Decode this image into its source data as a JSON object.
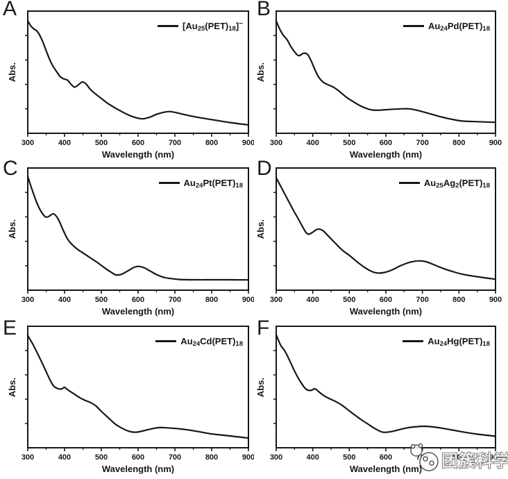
{
  "figure": {
    "background": "#ffffff",
    "line_color": "#161616",
    "watermark": {
      "text": "团簇科学",
      "icon": "cluster-mascot-icon"
    }
  },
  "chart_data": [
    {
      "type": "line",
      "panel": "A",
      "legend_plain": "[Au25(PET)18]−",
      "legend_segments": [
        {
          "t": "[Au"
        },
        {
          "t": "25",
          "s": "sub"
        },
        {
          "t": "(PET)"
        },
        {
          "t": "18",
          "s": "sub"
        },
        {
          "t": "]"
        },
        {
          "t": "−",
          "s": "sup"
        }
      ],
      "xlabel": "Wavelength (nm)",
      "ylabel": "Abs.",
      "xlim": [
        300,
        900
      ],
      "xticks": [
        300,
        400,
        500,
        600,
        700,
        800,
        900
      ],
      "xticks_minor": [
        350,
        450,
        550,
        650,
        750,
        850
      ],
      "ylim": [
        0,
        1
      ],
      "grid": false,
      "legend_position": "top-right",
      "series": [
        {
          "name": "[Au25(PET)18]−",
          "x": [
            300,
            308,
            316,
            324,
            332,
            342,
            352,
            364,
            376,
            388,
            398,
            408,
            418,
            427,
            437,
            448,
            458,
            470,
            485,
            500,
            520,
            545,
            570,
            595,
            612,
            630,
            650,
            670,
            685,
            705,
            730,
            760,
            800,
            850,
            900
          ],
          "y": [
            0.92,
            0.88,
            0.855,
            0.84,
            0.805,
            0.74,
            0.66,
            0.575,
            0.515,
            0.465,
            0.445,
            0.435,
            0.4,
            0.378,
            0.395,
            0.42,
            0.405,
            0.36,
            0.32,
            0.285,
            0.24,
            0.195,
            0.155,
            0.127,
            0.118,
            0.13,
            0.155,
            0.172,
            0.178,
            0.168,
            0.15,
            0.132,
            0.112,
            0.088,
            0.068
          ]
        }
      ]
    },
    {
      "type": "line",
      "panel": "B",
      "legend_plain": "Au24Pd(PET)18",
      "legend_segments": [
        {
          "t": "Au"
        },
        {
          "t": "24",
          "s": "sub"
        },
        {
          "t": "Pd(PET)"
        },
        {
          "t": "18",
          "s": "sub"
        }
      ],
      "xlabel": "Wavelength (nm)",
      "ylabel": "Abs.",
      "xlim": [
        300,
        900
      ],
      "xticks": [
        300,
        400,
        500,
        600,
        700,
        800,
        900
      ],
      "xticks_minor": [
        350,
        450,
        550,
        650,
        750,
        850
      ],
      "ylim": [
        0,
        1
      ],
      "grid": false,
      "legend_position": "top-right",
      "series": [
        {
          "name": "Au24Pd(PET)18",
          "x": [
            300,
            310,
            320,
            330,
            340,
            352,
            362,
            375,
            386,
            396,
            406,
            416,
            428,
            440,
            455,
            470,
            490,
            510,
            530,
            550,
            565,
            585,
            610,
            640,
            665,
            690,
            720,
            750,
            780,
            810,
            850,
            900
          ],
          "y": [
            0.92,
            0.85,
            0.8,
            0.765,
            0.71,
            0.66,
            0.635,
            0.655,
            0.645,
            0.59,
            0.52,
            0.46,
            0.42,
            0.4,
            0.38,
            0.35,
            0.3,
            0.26,
            0.225,
            0.2,
            0.19,
            0.19,
            0.195,
            0.2,
            0.2,
            0.185,
            0.16,
            0.135,
            0.115,
            0.1,
            0.095,
            0.09
          ]
        }
      ]
    },
    {
      "type": "line",
      "panel": "C",
      "legend_plain": "Au24Pt(PET)18",
      "legend_segments": [
        {
          "t": "Au"
        },
        {
          "t": "24",
          "s": "sub"
        },
        {
          "t": "Pt(PET)"
        },
        {
          "t": "18",
          "s": "sub"
        }
      ],
      "xlabel": "Wavelength (nm)",
      "ylabel": "Abs.",
      "xlim": [
        300,
        900
      ],
      "xticks": [
        300,
        400,
        500,
        600,
        700,
        800,
        900
      ],
      "xticks_minor": [
        350,
        450,
        550,
        650,
        750,
        850
      ],
      "ylim": [
        0,
        1
      ],
      "grid": false,
      "legend_position": "top-right",
      "series": [
        {
          "name": "Au24Pt(PET)18",
          "x": [
            300,
            312,
            324,
            336,
            348,
            358,
            370,
            382,
            395,
            408,
            420,
            435,
            450,
            470,
            490,
            510,
            525,
            540,
            555,
            572,
            588,
            600,
            615,
            632,
            650,
            670,
            690,
            710,
            730,
            760,
            800,
            850,
            900
          ],
          "y": [
            0.93,
            0.82,
            0.72,
            0.645,
            0.6,
            0.605,
            0.625,
            0.585,
            0.5,
            0.42,
            0.375,
            0.335,
            0.305,
            0.265,
            0.225,
            0.18,
            0.15,
            0.125,
            0.13,
            0.158,
            0.185,
            0.195,
            0.185,
            0.158,
            0.128,
            0.105,
            0.095,
            0.088,
            0.086,
            0.085,
            0.085,
            0.085,
            0.084
          ]
        }
      ]
    },
    {
      "type": "line",
      "panel": "D",
      "legend_plain": "Au25Ag2(PET)18",
      "legend_segments": [
        {
          "t": "Au"
        },
        {
          "t": "25",
          "s": "sub"
        },
        {
          "t": "Ag"
        },
        {
          "t": "2",
          "s": "sub"
        },
        {
          "t": "(PET)"
        },
        {
          "t": "18",
          "s": "sub"
        }
      ],
      "xlabel": "Wavelength (nm)",
      "ylabel": "Abs.",
      "xlim": [
        300,
        900
      ],
      "xticks": [
        300,
        400,
        500,
        600,
        700,
        800,
        900
      ],
      "xticks_minor": [
        350,
        450,
        550,
        650,
        750,
        850
      ],
      "ylim": [
        0,
        1
      ],
      "grid": false,
      "legend_position": "top-right",
      "series": [
        {
          "name": "Au25Ag2(PET)18",
          "x": [
            300,
            315,
            330,
            345,
            360,
            372,
            382,
            390,
            400,
            410,
            418,
            428,
            442,
            460,
            480,
            500,
            520,
            540,
            560,
            580,
            600,
            620,
            640,
            665,
            690,
            710,
            730,
            755,
            780,
            810,
            850,
            900
          ],
          "y": [
            0.92,
            0.835,
            0.75,
            0.665,
            0.585,
            0.52,
            0.47,
            0.458,
            0.475,
            0.495,
            0.5,
            0.487,
            0.445,
            0.39,
            0.33,
            0.285,
            0.235,
            0.19,
            0.155,
            0.14,
            0.148,
            0.17,
            0.2,
            0.228,
            0.24,
            0.233,
            0.21,
            0.18,
            0.155,
            0.13,
            0.11,
            0.09
          ]
        }
      ]
    },
    {
      "type": "line",
      "panel": "E",
      "legend_plain": "Au24Cd(PET)18",
      "legend_segments": [
        {
          "t": "Au"
        },
        {
          "t": "24",
          "s": "sub"
        },
        {
          "t": "Cd(PET)"
        },
        {
          "t": "18",
          "s": "sub"
        }
      ],
      "xlabel": "Wavelength (nm)",
      "ylabel": "Abs.",
      "xlim": [
        300,
        900
      ],
      "xticks": [
        300,
        400,
        500,
        600,
        700,
        800,
        900
      ],
      "xticks_minor": [
        350,
        450,
        550,
        650,
        750,
        850
      ],
      "ylim": [
        0,
        1
      ],
      "grid": false,
      "legend_position": "top-right",
      "series": [
        {
          "name": "Au24Cd(PET)18",
          "x": [
            300,
            315,
            330,
            345,
            358,
            370,
            382,
            392,
            400,
            410,
            424,
            440,
            456,
            470,
            485,
            500,
            518,
            538,
            558,
            578,
            595,
            615,
            635,
            660,
            690,
            715,
            740,
            770,
            800,
            850,
            900
          ],
          "y": [
            0.925,
            0.845,
            0.755,
            0.66,
            0.575,
            0.51,
            0.487,
            0.484,
            0.497,
            0.474,
            0.447,
            0.415,
            0.39,
            0.373,
            0.345,
            0.3,
            0.25,
            0.195,
            0.158,
            0.133,
            0.128,
            0.14,
            0.155,
            0.166,
            0.161,
            0.155,
            0.145,
            0.13,
            0.114,
            0.097,
            0.08
          ]
        }
      ]
    },
    {
      "type": "line",
      "panel": "F",
      "legend_plain": "Au24Hg(PET)18",
      "legend_segments": [
        {
          "t": "Au"
        },
        {
          "t": "24",
          "s": "sub"
        },
        {
          "t": "Hg(PET)"
        },
        {
          "t": "18",
          "s": "sub"
        }
      ],
      "xlabel": "Wavelength (nm)",
      "ylabel": "Abs.",
      "xlim": [
        300,
        900
      ],
      "xticks": [
        300,
        400,
        500,
        600,
        700,
        800,
        900
      ],
      "xticks_minor": [
        350,
        450,
        550,
        650,
        750,
        850
      ],
      "ylim": [
        0,
        1
      ],
      "grid": false,
      "legend_position": "top-right",
      "series": [
        {
          "name": "Au24Hg(PET)18",
          "x": [
            300,
            312,
            324,
            338,
            352,
            366,
            380,
            390,
            398,
            406,
            416,
            430,
            445,
            462,
            480,
            498,
            515,
            532,
            550,
            570,
            592,
            615,
            640,
            662,
            685,
            705,
            728,
            752,
            778,
            805,
            850,
            900
          ],
          "y": [
            0.93,
            0.845,
            0.795,
            0.71,
            0.62,
            0.545,
            0.487,
            0.472,
            0.475,
            0.486,
            0.462,
            0.43,
            0.405,
            0.382,
            0.35,
            0.308,
            0.27,
            0.232,
            0.197,
            0.158,
            0.128,
            0.133,
            0.152,
            0.166,
            0.174,
            0.177,
            0.172,
            0.162,
            0.148,
            0.133,
            0.112,
            0.095
          ]
        }
      ]
    }
  ]
}
